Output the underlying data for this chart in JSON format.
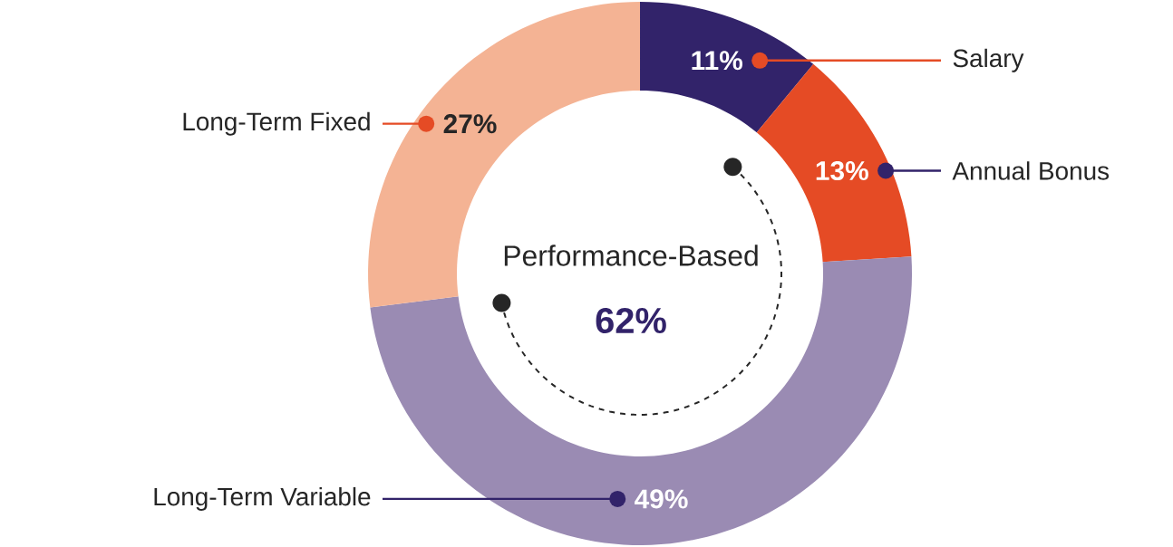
{
  "chart_data": {
    "type": "donut",
    "categories": [
      "Salary",
      "Annual Bonus",
      "Long-Term Variable",
      "Long-Term Fixed"
    ],
    "values": [
      11,
      13,
      49,
      27
    ],
    "colors": [
      "#32236a",
      "#e54b25",
      "#9a8bb3",
      "#f4b394"
    ],
    "value_labels": [
      "11%",
      "13%",
      "49%",
      "27%"
    ],
    "annotations": [
      "Performance-Based",
      "62%"
    ]
  }
}
